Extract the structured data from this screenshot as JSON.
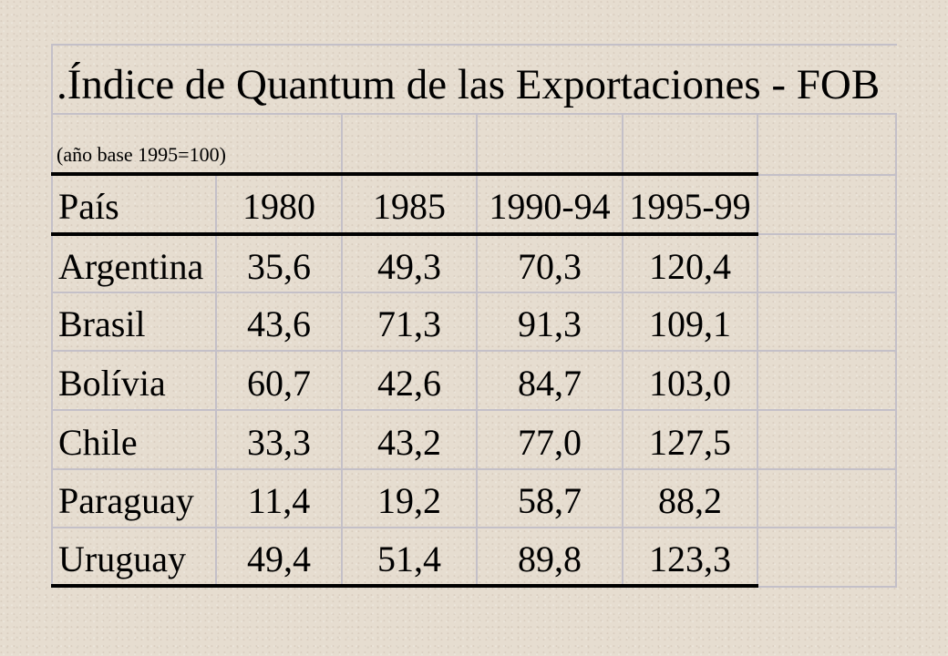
{
  "title": ".Índice de Quantum de las Exportaciones - FOB",
  "subtitle": "(año base 1995=100)",
  "table": {
    "headers": [
      "País",
      "1980",
      "1985",
      "1990-94",
      "1995-99"
    ],
    "rows": [
      {
        "country": "Argentina",
        "values": [
          "35,6",
          "49,3",
          "70,3",
          "120,4"
        ]
      },
      {
        "country": "Brasil",
        "values": [
          "43,6",
          "71,3",
          "91,3",
          "109,1"
        ]
      },
      {
        "country": "Bolívia",
        "values": [
          "60,7",
          "42,6",
          "84,7",
          "103,0"
        ]
      },
      {
        "country": "Chile",
        "values": [
          "33,3",
          "43,2",
          "77,0",
          "127,5"
        ]
      },
      {
        "country": "Paraguay",
        "values": [
          "11,4",
          "19,2",
          "58,7",
          "88,2"
        ]
      },
      {
        "country": "Uruguay",
        "values": [
          "49,4",
          "51,4",
          "89,8",
          "123,3"
        ]
      }
    ]
  }
}
